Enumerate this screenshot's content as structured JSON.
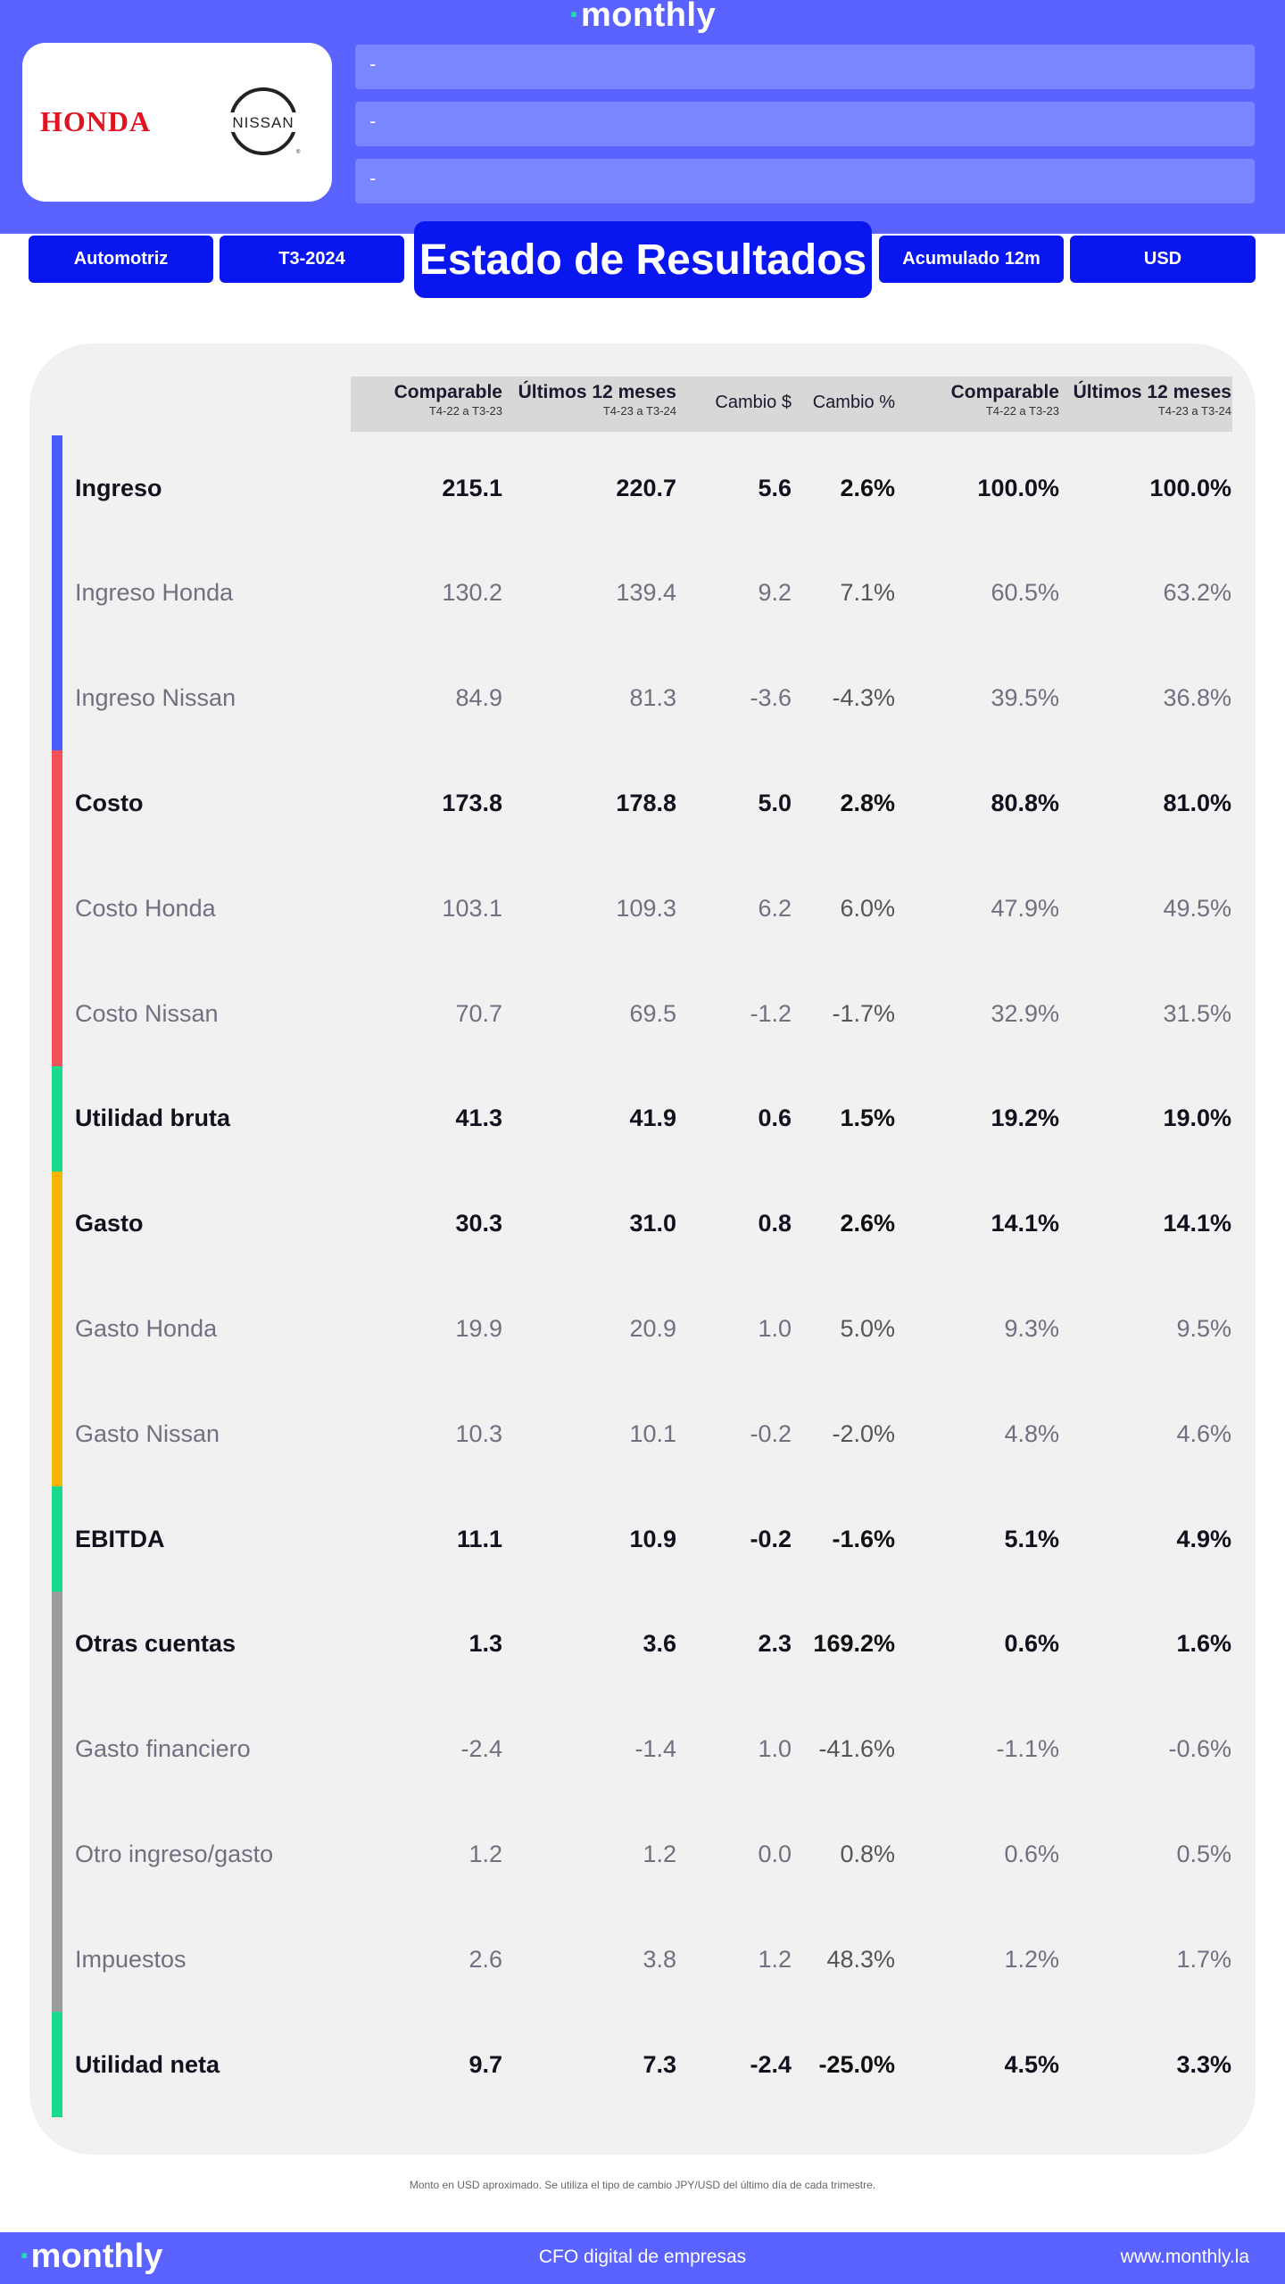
{
  "header": {
    "brand": "monthly",
    "logo_left_text": "HONDA",
    "logo_right_text": "NISSAN",
    "fields": [
      "-",
      "-",
      "-"
    ],
    "tags": {
      "sector": "Automotriz",
      "period": "T3-2024",
      "title": "Estado de Resultados",
      "basis": "Acumulado 12m",
      "currency": "USD"
    }
  },
  "table": {
    "columns": [
      {
        "label": "Comparable",
        "sub": "T4-22 a T3-23"
      },
      {
        "label": "Últimos 12 meses",
        "sub": "T4-23 a T3-24"
      },
      {
        "label": "Cambio  $",
        "sub": ""
      },
      {
        "label": "Cambio %",
        "sub": ""
      },
      {
        "label": "Comparable",
        "sub": "T4-22 a T3-23"
      },
      {
        "label": "Últimos 12 meses",
        "sub": "T4-23 a T3-24"
      }
    ],
    "rows": [
      {
        "label": "Ingreso",
        "bold": true,
        "values": [
          "215.1",
          "220.7",
          "5.6",
          "2.6%",
          "100.0%",
          "100.0%"
        ]
      },
      {
        "label": "Ingreso Honda",
        "bold": false,
        "values": [
          "130.2",
          "139.4",
          "9.2",
          "7.1%",
          "60.5%",
          "63.2%"
        ]
      },
      {
        "label": "Ingreso Nissan",
        "bold": false,
        "values": [
          "84.9",
          "81.3",
          "-3.6",
          "-4.3%",
          "39.5%",
          "36.8%"
        ]
      },
      {
        "label": "Costo",
        "bold": true,
        "values": [
          "173.8",
          "178.8",
          "5.0",
          "2.8%",
          "80.8%",
          "81.0%"
        ]
      },
      {
        "label": "Costo Honda",
        "bold": false,
        "values": [
          "103.1",
          "109.3",
          "6.2",
          "6.0%",
          "47.9%",
          "49.5%"
        ]
      },
      {
        "label": "Costo Nissan",
        "bold": false,
        "values": [
          "70.7",
          "69.5",
          "-1.2",
          "-1.7%",
          "32.9%",
          "31.5%"
        ]
      },
      {
        "label": "Utilidad bruta",
        "bold": true,
        "values": [
          "41.3",
          "41.9",
          "0.6",
          "1.5%",
          "19.2%",
          "19.0%"
        ]
      },
      {
        "label": "Gasto",
        "bold": true,
        "values": [
          "30.3",
          "31.0",
          "0.8",
          "2.6%",
          "14.1%",
          "14.1%"
        ]
      },
      {
        "label": "Gasto Honda",
        "bold": false,
        "values": [
          "19.9",
          "20.9",
          "1.0",
          "5.0%",
          "9.3%",
          "9.5%"
        ]
      },
      {
        "label": "Gasto Nissan",
        "bold": false,
        "values": [
          "10.3",
          "10.1",
          "-0.2",
          "-2.0%",
          "4.8%",
          "4.6%"
        ]
      },
      {
        "label": "EBITDA",
        "bold": true,
        "values": [
          "11.1",
          "10.9",
          "-0.2",
          "-1.6%",
          "5.1%",
          "4.9%"
        ]
      },
      {
        "label": "Otras cuentas",
        "bold": true,
        "values": [
          "1.3",
          "3.6",
          "2.3",
          "169.2%",
          "0.6%",
          "1.6%"
        ]
      },
      {
        "label": "Gasto financiero",
        "bold": false,
        "values": [
          "-2.4",
          "-1.4",
          "1.0",
          "-41.6%",
          "-1.1%",
          "-0.6%"
        ]
      },
      {
        "label": "Otro ingreso/gasto",
        "bold": false,
        "values": [
          "1.2",
          "1.2",
          "0.0",
          "0.8%",
          "0.6%",
          "0.5%"
        ]
      },
      {
        "label": "Impuestos",
        "bold": false,
        "values": [
          "2.6",
          "3.8",
          "1.2",
          "48.3%",
          "1.2%",
          "1.7%"
        ]
      },
      {
        "label": "Utilidad neta",
        "bold": true,
        "values": [
          "9.7",
          "7.3",
          "-2.4",
          "-25.0%",
          "4.5%",
          "3.3%"
        ]
      }
    ],
    "group_colors": {
      "ingreso": "#4c5bff",
      "costo": "#f5505a",
      "utilidad": "#19d98c",
      "gasto": "#f7b500",
      "otras": "#9c9c9c"
    }
  },
  "footnote": "Monto en USD aproximado. Se utiliza el tipo de cambio JPY/USD del último día de cada trimestre.",
  "footer": {
    "brand": "monthly",
    "tagline": "CFO digital de empresas",
    "url": "www.monthly.la"
  },
  "colors": {
    "brand_blue": "#5a63ff",
    "tag_blue": "#0a16f0",
    "field_blue": "#7a86ff",
    "panel_gray": "#f1f1f1"
  }
}
